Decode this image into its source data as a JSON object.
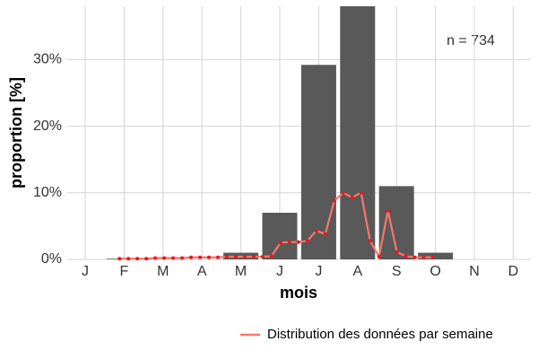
{
  "chart_data": {
    "type": "bar",
    "categories": [
      "J",
      "F",
      "M",
      "A",
      "M",
      "J",
      "J",
      "A",
      "S",
      "O",
      "N",
      "D"
    ],
    "values": [
      0,
      0.1,
      0,
      0,
      1.0,
      7.0,
      29.2,
      38.0,
      11.0,
      1.0,
      0,
      0
    ],
    "color": "#595959",
    "ylim": [
      0,
      38
    ],
    "yticks": [
      {
        "value": 0,
        "label": "0%"
      },
      {
        "value": 10,
        "label": "10%"
      },
      {
        "value": 20,
        "label": "20%"
      },
      {
        "value": 30,
        "label": "30%"
      }
    ],
    "xlabel": "mois",
    "ylabel": "proportion [%]",
    "grid": true,
    "annotation": "n = 734",
    "legend_position": "bottom-right",
    "line": {
      "name": "Distribution des données par semaine",
      "color": "#f8766d",
      "point_color": "#e8191c",
      "x": [
        6,
        7,
        8,
        9,
        10,
        11,
        12,
        13,
        14,
        15,
        16,
        17,
        18,
        19,
        20,
        21,
        22,
        23,
        24,
        25,
        26,
        27,
        28,
        29,
        30,
        31,
        32,
        33,
        34,
        35,
        36,
        37,
        38,
        39,
        40,
        41
      ],
      "values": [
        0.1,
        0.1,
        0.1,
        0.1,
        0.2,
        0.2,
        0.2,
        0.2,
        0.3,
        0.3,
        0.3,
        0.3,
        0.4,
        0.4,
        0.4,
        0.4,
        0.4,
        0.5,
        2.5,
        2.6,
        2.6,
        2.8,
        4.3,
        3.8,
        8.8,
        10.0,
        9.3,
        10.0,
        2.8,
        0.4,
        7.3,
        1.1,
        0.5,
        0.3,
        0.3,
        0.3
      ]
    }
  }
}
